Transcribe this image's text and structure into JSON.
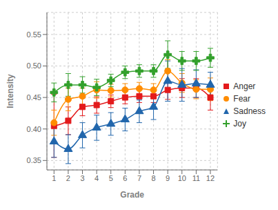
{
  "chart_data": {
    "type": "scatter",
    "xlabel": "Grade",
    "ylabel": "Intensity",
    "x": [
      1,
      2,
      3,
      4,
      5,
      6,
      7,
      8,
      9,
      10,
      11,
      12
    ],
    "series": [
      {
        "name": "Anger",
        "color": "#e31a1c",
        "marker": "square",
        "values": [
          0.405,
          0.413,
          0.435,
          0.438,
          0.444,
          0.45,
          0.452,
          0.452,
          0.462,
          0.465,
          0.465,
          0.45
        ],
        "errors": [
          0.05,
          0.022,
          0.014,
          0.013,
          0.01,
          0.01,
          0.01,
          0.01,
          0.015,
          0.015,
          0.015,
          0.02
        ]
      },
      {
        "name": "Fear",
        "color": "#ff8c00",
        "marker": "circle",
        "values": [
          0.41,
          0.447,
          0.452,
          0.462,
          0.461,
          0.462,
          0.464,
          0.462,
          0.492,
          0.473,
          0.463,
          0.463
        ],
        "errors": [
          0.02,
          0.018,
          0.013,
          0.013,
          0.01,
          0.01,
          0.01,
          0.01,
          0.018,
          0.015,
          0.015,
          0.018
        ]
      },
      {
        "name": "Sadness",
        "color": "#2166ac",
        "marker": "triangle",
        "values": [
          0.38,
          0.368,
          0.39,
          0.402,
          0.408,
          0.415,
          0.428,
          0.435,
          0.476,
          0.47,
          0.472,
          0.47
        ],
        "errors": [
          0.025,
          0.023,
          0.02,
          0.02,
          0.018,
          0.018,
          0.018,
          0.02,
          0.032,
          0.026,
          0.022,
          0.02
        ]
      },
      {
        "name": "Joy",
        "color": "#33a02c",
        "marker": "cross",
        "values": [
          0.458,
          0.47,
          0.47,
          0.466,
          0.477,
          0.49,
          0.492,
          0.492,
          0.518,
          0.508,
          0.508,
          0.513
        ],
        "errors": [
          0.015,
          0.018,
          0.013,
          0.013,
          0.01,
          0.01,
          0.01,
          0.01,
          0.022,
          0.015,
          0.015,
          0.015
        ]
      }
    ],
    "xlim": [
      0.5,
      12.5
    ],
    "xticks": [
      1,
      2,
      3,
      4,
      5,
      6,
      7,
      8,
      9,
      10,
      11,
      12
    ],
    "ylim": [
      0.335,
      0.585
    ],
    "yticks": [
      0.35,
      {
        "value": 0.4,
        "label": "0.40"
      },
      0.45,
      {
        "value": 0.5,
        "label": "0.50"
      },
      0.55
    ],
    "grid": true,
    "legend": "right"
  }
}
